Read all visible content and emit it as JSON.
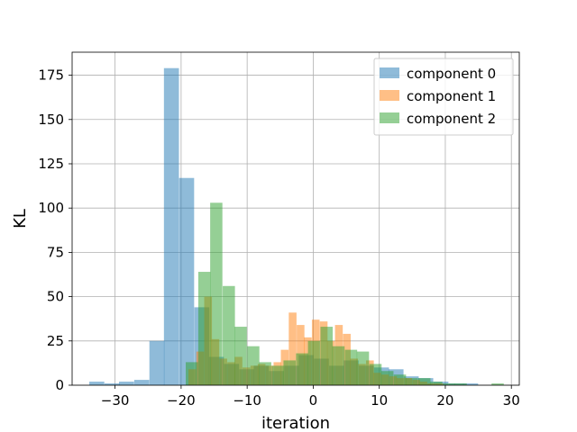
{
  "chart_data": {
    "type": "bar",
    "subtype": "overlapping-histogram",
    "title": "",
    "xlabel": "iteration",
    "ylabel": "KL",
    "xlim": [
      -36.5,
      31.2
    ],
    "ylim": [
      0,
      188
    ],
    "xticks": [
      -30,
      -20,
      -10,
      0,
      10,
      20,
      30
    ],
    "yticks": [
      0,
      25,
      50,
      75,
      100,
      125,
      150,
      175
    ],
    "xtick_labels": [
      "−30",
      "−20",
      "−10",
      "0",
      "10",
      "20",
      "30"
    ],
    "ytick_labels": [
      "0",
      "25",
      "50",
      "75",
      "100",
      "125",
      "150",
      "175"
    ],
    "grid": true,
    "legend": "top-right",
    "bar_alpha": 0.5,
    "series": [
      {
        "name": "component 0",
        "color": "#1f77b4",
        "bin_width": 2.27,
        "x_start": [
          -33.9,
          -31.6,
          -29.4,
          -27.1,
          -24.8,
          -22.6,
          -20.3,
          -18.0,
          -15.8,
          -13.5,
          -11.2,
          -9.0,
          -6.7,
          -4.4,
          -2.2,
          0.1,
          2.4,
          4.6,
          6.9,
          9.2,
          11.4,
          13.7,
          15.9,
          18.2,
          20.5,
          22.7
        ],
        "values": [
          2,
          1,
          2,
          3,
          25,
          179,
          117,
          44,
          16,
          12,
          9,
          11,
          8,
          11,
          17,
          15,
          11,
          14,
          11,
          10,
          9,
          5,
          4,
          2,
          1,
          1
        ]
      },
      {
        "name": "component 1",
        "color": "#ff7f0e",
        "bin_width": 1.17,
        "x_start": [
          -18.9,
          -17.7,
          -16.5,
          -15.4,
          -14.2,
          -13.0,
          -11.9,
          -10.7,
          -9.5,
          -8.4,
          -7.2,
          -6.0,
          -4.9,
          -3.7,
          -2.5,
          -1.4,
          -0.2,
          1.0,
          2.1,
          3.3,
          4.5,
          5.6,
          6.8,
          8.0,
          9.1,
          10.3,
          11.5,
          12.6,
          13.8,
          15.0,
          16.1,
          17.3,
          18.5
        ],
        "values": [
          9,
          19,
          50,
          26,
          15,
          13,
          16,
          10,
          11,
          12,
          11,
          13,
          20,
          41,
          34,
          27,
          37,
          36,
          25,
          34,
          29,
          15,
          12,
          14,
          7,
          6,
          5,
          4,
          4,
          3,
          2,
          1,
          1
        ]
      },
      {
        "name": "component 2",
        "color": "#2ca02c",
        "bin_width": 1.85,
        "x_start": [
          -19.3,
          -17.4,
          -15.6,
          -13.7,
          -11.9,
          -10.0,
          -8.2,
          -6.3,
          -4.5,
          -2.6,
          -0.8,
          1.1,
          2.9,
          4.8,
          6.6,
          8.5,
          10.3,
          12.2,
          14.0,
          15.9,
          17.7,
          19.6,
          21.4,
          23.3,
          25.1,
          27.0
        ],
        "values": [
          13,
          64,
          103,
          56,
          33,
          22,
          13,
          11,
          14,
          18,
          25,
          33,
          22,
          20,
          19,
          12,
          8,
          6,
          4,
          4,
          2,
          1,
          1,
          0,
          0,
          1
        ]
      }
    ]
  }
}
